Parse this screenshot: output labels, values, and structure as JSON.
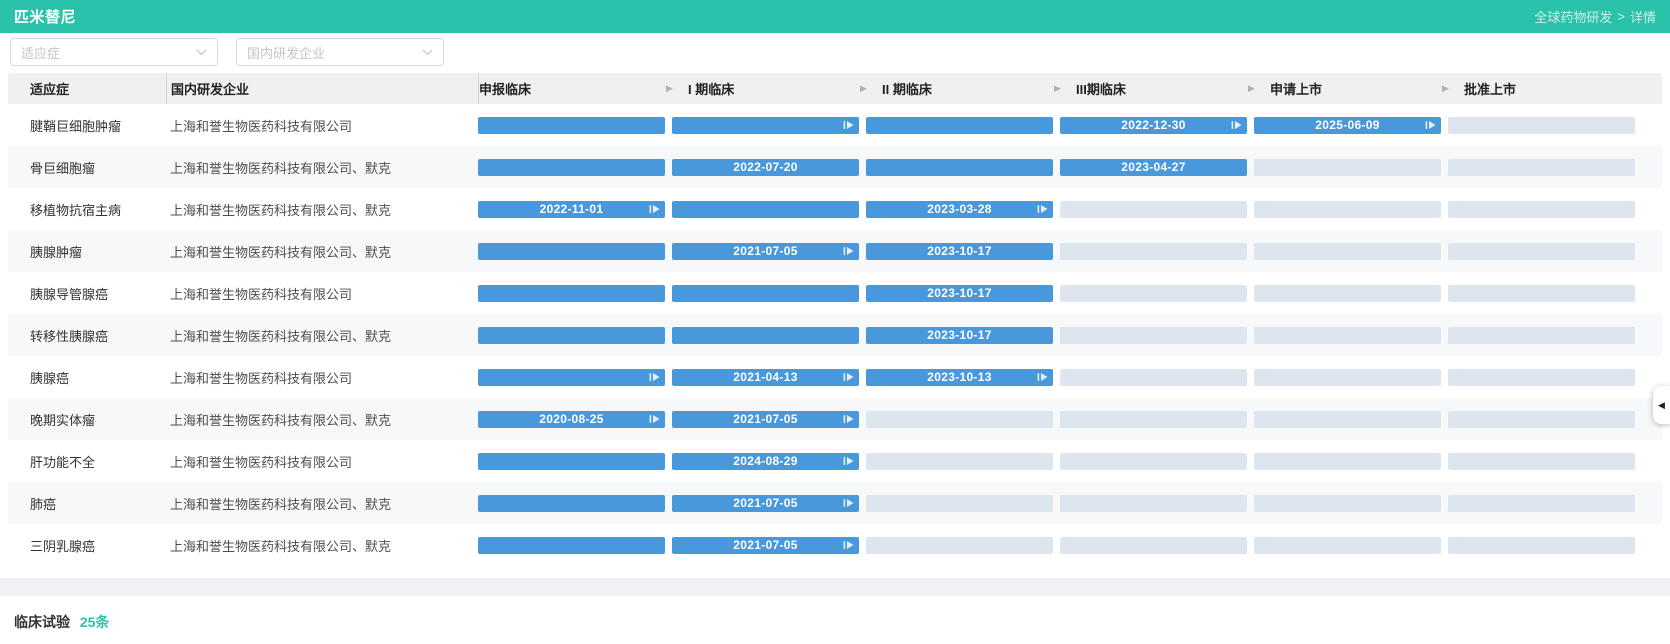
{
  "colors": {
    "accent": "#2bc2aa",
    "bar_active": "#4898db",
    "bar_inactive": "#dde6ef"
  },
  "header": {
    "title": "匹米替尼",
    "breadcrumb": {
      "parent": "全球药物研发",
      "separator": ">",
      "current": "详情"
    }
  },
  "filters": {
    "indication_placeholder": "适应症",
    "company_placeholder": "国内研发企业"
  },
  "icons": {
    "phase_flow_arrow": "▶",
    "collapse_caret": "◀"
  },
  "table": {
    "columns": [
      "适应症",
      "国内研发企业",
      "申报临床",
      "I 期临床",
      "II 期临床",
      "III期临床",
      "申请上市",
      "批准上市"
    ],
    "rows": [
      {
        "indication": "腱鞘巨细胞肿瘤",
        "company": "上海和誉生物医药科技有限公司",
        "phases": [
          {
            "status": "done"
          },
          {
            "status": "done",
            "advance": true
          },
          {
            "status": "done"
          },
          {
            "status": "done",
            "date": "2022-12-30",
            "advance": true
          },
          {
            "status": "done",
            "date": "2025-06-09",
            "advance": true
          },
          {
            "status": "pending"
          }
        ]
      },
      {
        "indication": "骨巨细胞瘤",
        "company": "上海和誉生物医药科技有限公司、默克",
        "phases": [
          {
            "status": "done"
          },
          {
            "status": "done",
            "date": "2022-07-20"
          },
          {
            "status": "done"
          },
          {
            "status": "done",
            "date": "2023-04-27"
          },
          {
            "status": "pending"
          },
          {
            "status": "pending"
          }
        ]
      },
      {
        "indication": "移植物抗宿主病",
        "company": "上海和誉生物医药科技有限公司、默克",
        "phases": [
          {
            "status": "done",
            "date": "2022-11-01",
            "advance": true
          },
          {
            "status": "done"
          },
          {
            "status": "done",
            "date": "2023-03-28",
            "advance": true
          },
          {
            "status": "pending"
          },
          {
            "status": "pending"
          },
          {
            "status": "pending"
          }
        ]
      },
      {
        "indication": "胰腺肿瘤",
        "company": "上海和誉生物医药科技有限公司、默克",
        "phases": [
          {
            "status": "done"
          },
          {
            "status": "done",
            "date": "2021-07-05",
            "advance": true
          },
          {
            "status": "done",
            "date": "2023-10-17"
          },
          {
            "status": "pending"
          },
          {
            "status": "pending"
          },
          {
            "status": "pending"
          }
        ]
      },
      {
        "indication": "胰腺导管腺癌",
        "company": "上海和誉生物医药科技有限公司",
        "phases": [
          {
            "status": "done"
          },
          {
            "status": "done"
          },
          {
            "status": "done",
            "date": "2023-10-17"
          },
          {
            "status": "pending"
          },
          {
            "status": "pending"
          },
          {
            "status": "pending"
          }
        ]
      },
      {
        "indication": "转移性胰腺癌",
        "company": "上海和誉生物医药科技有限公司、默克",
        "phases": [
          {
            "status": "done"
          },
          {
            "status": "done"
          },
          {
            "status": "done",
            "date": "2023-10-17"
          },
          {
            "status": "pending"
          },
          {
            "status": "pending"
          },
          {
            "status": "pending"
          }
        ]
      },
      {
        "indication": "胰腺癌",
        "company": "上海和誉生物医药科技有限公司",
        "phases": [
          {
            "status": "done",
            "advance": true
          },
          {
            "status": "done",
            "date": "2021-04-13",
            "advance": true
          },
          {
            "status": "done",
            "date": "2023-10-13",
            "advance": true
          },
          {
            "status": "pending"
          },
          {
            "status": "pending"
          },
          {
            "status": "pending"
          }
        ]
      },
      {
        "indication": "晚期实体瘤",
        "company": "上海和誉生物医药科技有限公司、默克",
        "phases": [
          {
            "status": "done",
            "date": "2020-08-25",
            "advance": true
          },
          {
            "status": "done",
            "date": "2021-07-05",
            "advance": true
          },
          {
            "status": "pending"
          },
          {
            "status": "pending"
          },
          {
            "status": "pending"
          },
          {
            "status": "pending"
          }
        ]
      },
      {
        "indication": "肝功能不全",
        "company": "上海和誉生物医药科技有限公司",
        "phases": [
          {
            "status": "done"
          },
          {
            "status": "done",
            "date": "2024-08-29",
            "advance": true
          },
          {
            "status": "pending"
          },
          {
            "status": "pending"
          },
          {
            "status": "pending"
          },
          {
            "status": "pending"
          }
        ]
      },
      {
        "indication": "肺癌",
        "company": "上海和誉生物医药科技有限公司、默克",
        "phases": [
          {
            "status": "done"
          },
          {
            "status": "done",
            "date": "2021-07-05",
            "advance": true
          },
          {
            "status": "pending"
          },
          {
            "status": "pending"
          },
          {
            "status": "pending"
          },
          {
            "status": "pending"
          }
        ]
      },
      {
        "indication": "三阴乳腺癌",
        "company": "上海和誉生物医药科技有限公司、默克",
        "phases": [
          {
            "status": "done"
          },
          {
            "status": "done",
            "date": "2021-07-05",
            "advance": true
          },
          {
            "status": "pending"
          },
          {
            "status": "pending"
          },
          {
            "status": "pending"
          },
          {
            "status": "pending"
          }
        ]
      }
    ]
  },
  "footer": {
    "label": "临床试验",
    "count": "25条"
  }
}
